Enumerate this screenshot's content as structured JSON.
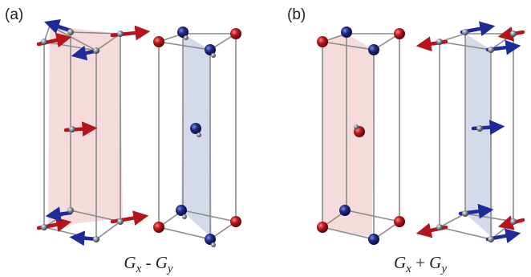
{
  "panels": [
    {
      "tag": "(a)",
      "caption": {
        "s1": "G",
        "sub1": "x",
        "op": " - ",
        "s2": "G",
        "sub2": "y"
      }
    },
    {
      "tag": "(b)",
      "caption": {
        "s1": "G",
        "sub1": "x",
        "op": " + ",
        "s2": "G",
        "sub2": "y"
      }
    }
  ],
  "colors": {
    "red_atom": "#c0161b",
    "blue_atom": "#1f2a8a",
    "red_plane": "#f1cfcf",
    "blue_plane": "#ced3e6",
    "cell_edge": "#8c8c8c",
    "grey_atom": "#8a9099"
  }
}
